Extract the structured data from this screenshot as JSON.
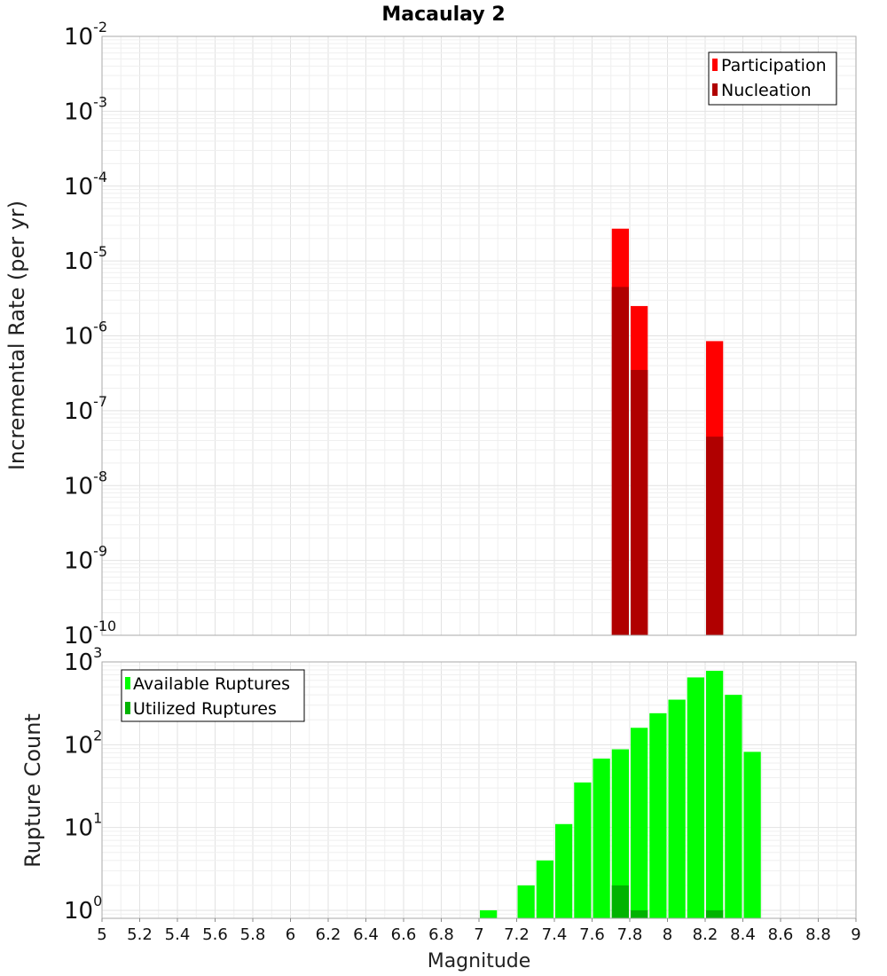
{
  "colors": {
    "participation": "#ff0000",
    "nucleation": "#b00000",
    "available": "#00ff00",
    "utilized": "#00b300"
  },
  "chart_data": [
    {
      "type": "bar",
      "title": "Macaulay 2",
      "xlabel": "",
      "ylabel": "Incremental Rate (per yr)",
      "yscale": "log",
      "ylim": [
        1e-10,
        0.01
      ],
      "xlim": [
        5,
        9
      ],
      "bar_width": 0.1,
      "grid": true,
      "legend_position": "top-right",
      "series": [
        {
          "name": "Participation",
          "color_key": "participation",
          "x": [
            7.75,
            7.85,
            8.25
          ],
          "values": [
            2.7e-05,
            2.5e-06,
            8.5e-07
          ]
        },
        {
          "name": "Nucleation",
          "color_key": "nucleation",
          "x": [
            7.75,
            7.85,
            8.25
          ],
          "values": [
            4.5e-06,
            3.5e-07,
            4.5e-08
          ]
        }
      ]
    },
    {
      "type": "bar",
      "title": "",
      "xlabel": "Magnitude",
      "ylabel": "Rupture Count",
      "yscale": "log",
      "ylim": [
        0.8,
        1000
      ],
      "xlim": [
        5,
        9
      ],
      "bar_width": 0.1,
      "grid": true,
      "legend_position": "top-left",
      "series": [
        {
          "name": "Available Ruptures",
          "color_key": "available",
          "x": [
            7.05,
            7.25,
            7.35,
            7.45,
            7.55,
            7.65,
            7.75,
            7.85,
            7.95,
            8.05,
            8.15,
            8.25,
            8.35,
            8.45
          ],
          "values": [
            1,
            2,
            4,
            11,
            35,
            68,
            88,
            160,
            240,
            350,
            650,
            780,
            400,
            82
          ]
        },
        {
          "name": "Utilized Ruptures",
          "color_key": "utilized",
          "x": [
            7.75,
            7.85,
            8.25
          ],
          "values": [
            2,
            1,
            1
          ]
        }
      ]
    }
  ],
  "axes": {
    "top_yticks": [
      {
        "base": "10",
        "exp": "-2"
      },
      {
        "base": "10",
        "exp": "-3"
      },
      {
        "base": "10",
        "exp": "-4"
      },
      {
        "base": "10",
        "exp": "-5"
      },
      {
        "base": "10",
        "exp": "-6"
      },
      {
        "base": "10",
        "exp": "-7"
      },
      {
        "base": "10",
        "exp": "-8"
      },
      {
        "base": "10",
        "exp": "-9"
      },
      {
        "base": "10",
        "exp": "-10"
      }
    ],
    "bottom_yticks": [
      {
        "base": "10",
        "exp": "3"
      },
      {
        "base": "10",
        "exp": "2"
      },
      {
        "base": "10",
        "exp": "1"
      },
      {
        "base": "10",
        "exp": "0"
      }
    ],
    "xticks": [
      "5",
      "5.2",
      "5.4",
      "5.6",
      "5.8",
      "6",
      "6.2",
      "6.4",
      "6.6",
      "6.8",
      "7",
      "7.2",
      "7.4",
      "7.6",
      "7.8",
      "8",
      "8.2",
      "8.4",
      "8.6",
      "8.8",
      "9"
    ]
  }
}
